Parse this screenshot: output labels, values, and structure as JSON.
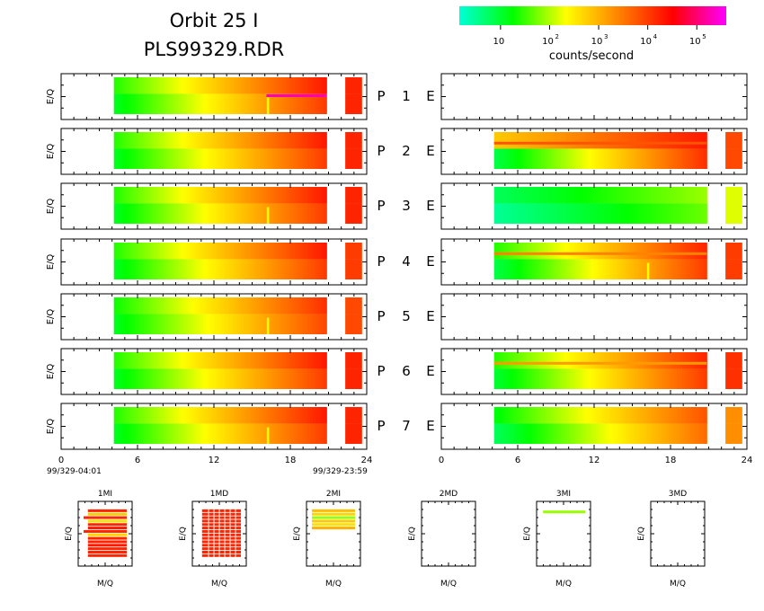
{
  "title": "Orbit 25 I",
  "filename": "PLS99329.RDR",
  "colorbar": {
    "label": "counts/second",
    "ticks": [
      {
        "base": "10",
        "exp": ""
      },
      {
        "base": "10",
        "exp": "2"
      },
      {
        "base": "10",
        "exp": "3"
      },
      {
        "base": "10",
        "exp": "4"
      },
      {
        "base": "10",
        "exp": "5"
      }
    ],
    "log_min": 0.16,
    "log_max": 5.6,
    "stops": [
      "#00ffd8",
      "#00ff00",
      "#ffff00",
      "#ff8000",
      "#ff0000",
      "#ff00ff"
    ]
  },
  "row_labels": [
    {
      "p": "P",
      "num": "1",
      "e": "E"
    },
    {
      "p": "P",
      "num": "2",
      "e": "E"
    },
    {
      "p": "P",
      "num": "3",
      "e": "E"
    },
    {
      "p": "P",
      "num": "4",
      "e": "E"
    },
    {
      "p": "P",
      "num": "5",
      "e": "E"
    },
    {
      "p": "P",
      "num": "6",
      "e": "E"
    },
    {
      "p": "P",
      "num": "7",
      "e": "E"
    }
  ],
  "left_ylabel": "E/Q",
  "time_axis": {
    "ticks": [
      "0",
      "6",
      "12",
      "18",
      "24"
    ],
    "tick_values": [
      0,
      6,
      12,
      18,
      24
    ],
    "xlim": [
      0,
      24
    ],
    "start_label": "99/329-04:01",
    "end_label": "99/329-23:59"
  },
  "chart_data": {
    "type": "heatmap",
    "x_unit": "hours",
    "x_range": [
      0,
      24
    ],
    "panels": {
      "P": [
        {
          "num": 1,
          "segments": [
            {
              "t0": 4,
              "t1": 21,
              "log_start": 1.1,
              "log_end": 4.0,
              "log_top_start": 1.4,
              "log_top_end": 4.3
            },
            {
              "t0": 22.5,
              "t1": 23.8,
              "log_start": 4.2,
              "log_end": 4.2
            }
          ],
          "spikes": [
            16.3
          ],
          "bands": [
            {
              "frac": 0.5,
              "t0": 16.2,
              "t1": 21,
              "log": 5.3
            }
          ]
        },
        {
          "num": 2,
          "segments": [
            {
              "t0": 4,
              "t1": 21,
              "log_start": 1.1,
              "log_end": 4.0,
              "log_top_start": 1.4,
              "log_top_end": 4.3
            },
            {
              "t0": 22.5,
              "t1": 23.8,
              "log_start": 4.2,
              "log_end": 4.2
            }
          ],
          "spikes": [],
          "bands": []
        },
        {
          "num": 3,
          "segments": [
            {
              "t0": 4,
              "t1": 21,
              "log_start": 1.1,
              "log_end": 4.0,
              "log_top_start": 1.4,
              "log_top_end": 4.3
            },
            {
              "t0": 22.5,
              "t1": 23.8,
              "log_start": 4.2,
              "log_end": 4.2
            }
          ],
          "spikes": [
            16.3
          ],
          "bands": []
        },
        {
          "num": 4,
          "segments": [
            {
              "t0": 4,
              "t1": 21,
              "log_start": 1.1,
              "log_end": 4.0,
              "log_top_start": 1.4,
              "log_top_end": 4.3
            },
            {
              "t0": 22.5,
              "t1": 23.8,
              "log_start": 4.0,
              "log_end": 4.0
            }
          ],
          "spikes": [],
          "bands": []
        },
        {
          "num": 5,
          "segments": [
            {
              "t0": 4,
              "t1": 21,
              "log_start": 1.1,
              "log_end": 3.9,
              "log_top_start": 1.3,
              "log_top_end": 4.1
            },
            {
              "t0": 22.5,
              "t1": 23.8,
              "log_start": 3.9,
              "log_end": 3.9
            }
          ],
          "spikes": [
            16.3
          ],
          "bands": []
        },
        {
          "num": 6,
          "segments": [
            {
              "t0": 4,
              "t1": 21,
              "log_start": 1.1,
              "log_end": 4.0,
              "log_top_start": 1.4,
              "log_top_end": 4.3
            },
            {
              "t0": 22.5,
              "t1": 23.8,
              "log_start": 4.2,
              "log_end": 4.2
            }
          ],
          "spikes": [],
          "bands": []
        },
        {
          "num": 7,
          "segments": [
            {
              "t0": 4,
              "t1": 21,
              "log_start": 1.1,
              "log_end": 4.0,
              "log_top_start": 1.4,
              "log_top_end": 4.3
            },
            {
              "t0": 22.5,
              "t1": 23.8,
              "log_start": 4.2,
              "log_end": 4.2
            }
          ],
          "spikes": [
            16.3
          ],
          "bands": []
        }
      ],
      "E": [
        {
          "num": 1,
          "segments": [],
          "spikes": [],
          "bands": []
        },
        {
          "num": 2,
          "segments": [
            {
              "t0": 4,
              "t1": 21,
              "log_start": 0.9,
              "log_end": 4.1,
              "log_top_start": 2.8,
              "log_top_end": 4.3
            },
            {
              "t0": 22.5,
              "t1": 23.8,
              "log_start": 3.9,
              "log_end": 3.9
            }
          ],
          "spikes": [],
          "bands": [
            {
              "frac": 0.3,
              "t0": 4,
              "t1": 21,
              "log": 3.8
            }
          ]
        },
        {
          "num": 3,
          "segments": [
            {
              "t0": 4,
              "t1": 21,
              "log_start": 0.5,
              "log_end": 1.7,
              "log_top_start": 0.8,
              "log_top_end": 1.9
            },
            {
              "t0": 22.5,
              "t1": 23.8,
              "log_start": 2.2,
              "log_end": 2.2
            }
          ],
          "spikes": [],
          "bands": []
        },
        {
          "num": 4,
          "segments": [
            {
              "t0": 4,
              "t1": 21,
              "log_start": 0.9,
              "log_end": 4.0,
              "log_top_start": 1.4,
              "log_top_end": 4.2
            },
            {
              "t0": 22.5,
              "t1": 23.8,
              "log_start": 4.0,
              "log_end": 4.0
            }
          ],
          "spikes": [
            16.3
          ],
          "bands": [
            {
              "frac": 0.3,
              "t0": 4,
              "t1": 21,
              "log": 3.4
            }
          ]
        },
        {
          "num": 5,
          "segments": [],
          "spikes": [],
          "bands": []
        },
        {
          "num": 6,
          "segments": [
            {
              "t0": 4,
              "t1": 21,
              "log_start": 1.0,
              "log_end": 4.0,
              "log_top_start": 1.4,
              "log_top_end": 4.2
            },
            {
              "t0": 22.5,
              "t1": 23.8,
              "log_start": 4.1,
              "log_end": 4.1
            }
          ],
          "spikes": [],
          "bands": [
            {
              "frac": 0.3,
              "t0": 4,
              "t1": 21,
              "log": 3.2
            }
          ]
        },
        {
          "num": 7,
          "segments": [
            {
              "t0": 4,
              "t1": 21,
              "log_start": 0.8,
              "log_end": 3.6,
              "log_top_start": 1.2,
              "log_top_end": 3.8
            },
            {
              "t0": 22.5,
              "t1": 23.8,
              "log_start": 3.3,
              "log_end": 3.3
            }
          ],
          "spikes": [],
          "bands": []
        }
      ]
    },
    "small_panels": [
      {
        "name": "1MI",
        "xlabel": "M/Q",
        "ylabel": "E/Q",
        "lines": [
          {
            "y": 0.1,
            "x0": 0.18,
            "x1": 0.9,
            "log": 4.2
          },
          {
            "y": 0.16,
            "x0": 0.18,
            "x1": 0.9,
            "log": 2.8
          },
          {
            "y": 0.22,
            "x0": 0.1,
            "x1": 0.9,
            "log": 4.2
          },
          {
            "y": 0.28,
            "x0": 0.18,
            "x1": 0.9,
            "log": 2.6
          },
          {
            "y": 0.34,
            "x0": 0.18,
            "x1": 0.9,
            "log": 4.2
          },
          {
            "y": 0.4,
            "x0": 0.18,
            "x1": 0.9,
            "log": 4.3
          },
          {
            "y": 0.46,
            "x0": 0.1,
            "x1": 0.9,
            "log": 4.2
          },
          {
            "y": 0.52,
            "x0": 0.18,
            "x1": 0.9,
            "log": 2.7
          },
          {
            "y": 0.58,
            "x0": 0.18,
            "x1": 0.9,
            "log": 4.2
          },
          {
            "y": 0.64,
            "x0": 0.18,
            "x1": 0.9,
            "log": 4.2
          },
          {
            "y": 0.7,
            "x0": 0.18,
            "x1": 0.9,
            "log": 4.3
          },
          {
            "y": 0.76,
            "x0": 0.18,
            "x1": 0.9,
            "log": 4.2
          },
          {
            "y": 0.82,
            "x0": 0.18,
            "x1": 0.9,
            "log": 4.2
          },
          {
            "y": 0.88,
            "x0": 0.18,
            "x1": 0.9,
            "log": 4.2
          }
        ]
      },
      {
        "name": "1MD",
        "xlabel": "M/Q",
        "ylabel": "E/Q",
        "lines": [
          {
            "y": 0.1,
            "x0": 0.18,
            "x1": 0.9,
            "log": 4.2
          },
          {
            "y": 0.16,
            "x0": 0.18,
            "x1": 0.9,
            "log": 4.2
          },
          {
            "y": 0.22,
            "x0": 0.18,
            "x1": 0.9,
            "log": 4.2
          },
          {
            "y": 0.28,
            "x0": 0.18,
            "x1": 0.9,
            "log": 4.2
          },
          {
            "y": 0.34,
            "x0": 0.18,
            "x1": 0.9,
            "log": 4.2
          },
          {
            "y": 0.4,
            "x0": 0.18,
            "x1": 0.9,
            "log": 4.2
          },
          {
            "y": 0.46,
            "x0": 0.18,
            "x1": 0.9,
            "log": 4.2
          },
          {
            "y": 0.52,
            "x0": 0.18,
            "x1": 0.9,
            "log": 4.2
          },
          {
            "y": 0.58,
            "x0": 0.18,
            "x1": 0.9,
            "log": 4.2
          },
          {
            "y": 0.64,
            "x0": 0.18,
            "x1": 0.9,
            "log": 4.2
          },
          {
            "y": 0.7,
            "x0": 0.18,
            "x1": 0.9,
            "log": 4.2
          },
          {
            "y": 0.76,
            "x0": 0.18,
            "x1": 0.9,
            "log": 4.2
          },
          {
            "y": 0.82,
            "x0": 0.18,
            "x1": 0.9,
            "log": 4.2
          },
          {
            "y": 0.88,
            "x0": 0.18,
            "x1": 0.9,
            "log": 4.2
          }
        ]
      },
      {
        "name": "2MI",
        "xlabel": "M/Q",
        "ylabel": "E/Q",
        "lines": [
          {
            "y": 0.1,
            "x0": 0.1,
            "x1": 0.9,
            "log": 2.9
          },
          {
            "y": 0.16,
            "x0": 0.1,
            "x1": 0.9,
            "log": 2.7
          },
          {
            "y": 0.22,
            "x0": 0.1,
            "x1": 0.9,
            "log": 1.9
          },
          {
            "y": 0.28,
            "x0": 0.1,
            "x1": 0.9,
            "log": 2.8
          },
          {
            "y": 0.34,
            "x0": 0.1,
            "x1": 0.9,
            "log": 2.6
          },
          {
            "y": 0.4,
            "x0": 0.1,
            "x1": 0.9,
            "log": 3.0
          }
        ]
      },
      {
        "name": "2MD",
        "xlabel": "M/Q",
        "ylabel": "E/Q",
        "lines": []
      },
      {
        "name": "3MI",
        "xlabel": "M/Q",
        "ylabel": "E/Q",
        "lines": [
          {
            "y": 0.12,
            "x0": 0.12,
            "x1": 0.9,
            "log": 1.9
          }
        ]
      },
      {
        "name": "3MD",
        "xlabel": "M/Q",
        "ylabel": "E/Q",
        "lines": []
      }
    ]
  }
}
